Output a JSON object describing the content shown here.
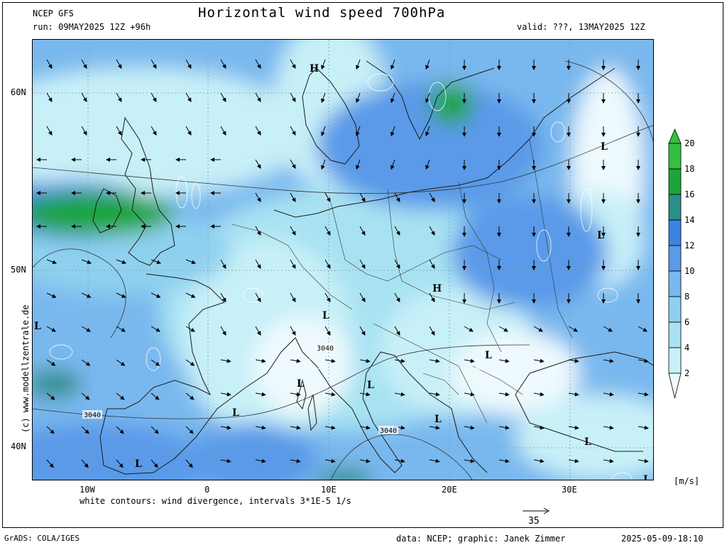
{
  "header": {
    "model": "NCEP GFS",
    "title": "Horizontal wind speed 700hPa",
    "run": "run: 09MAY2025 12Z +96h",
    "valid": "valid: ???, 13MAY2025 12Z"
  },
  "map": {
    "lat_labels": [
      "60N",
      "50N",
      "40N"
    ],
    "lon_labels": [
      "10W",
      "0",
      "10E",
      "20E",
      "30E"
    ],
    "pressure_labels": [
      "3040",
      "3040",
      "3040"
    ],
    "high_labels": [
      "H",
      "H"
    ],
    "low_labels": [
      "L",
      "L",
      "L",
      "L",
      "L",
      "L",
      "L",
      "L",
      "L",
      "L",
      "L",
      "L"
    ],
    "watermark": "(c) www.modellzentrale.de"
  },
  "colorbar": {
    "ticks": [
      "2",
      "4",
      "6",
      "8",
      "10",
      "12",
      "14",
      "16",
      "18",
      "20"
    ],
    "unit": "[m/s]",
    "colors": [
      "#eefafd",
      "#c8f0f8",
      "#a8e2f2",
      "#8fd0ef",
      "#79b8ee",
      "#5a9ae8",
      "#3a84e0",
      "#2a8f88",
      "#1ea43a",
      "#32c040"
    ]
  },
  "legend": {
    "contours": "white contours: wind divergence, intervals 3*1E-5 1/s",
    "vector_value": "35"
  },
  "footer": {
    "left": "GrADS: COLA/IGES",
    "credit": "data: NCEP; graphic: Janek Zimmer",
    "timestamp": "2025-05-09-18:10"
  }
}
